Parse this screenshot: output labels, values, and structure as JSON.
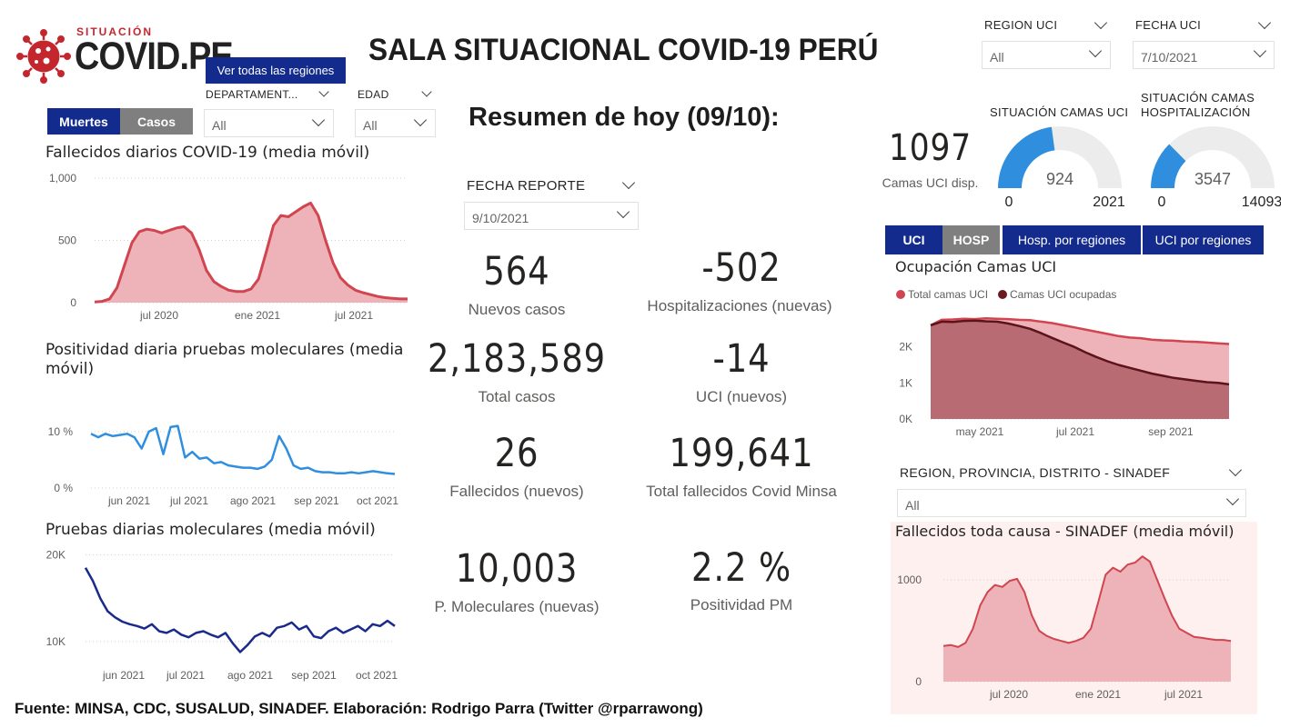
{
  "logo": {
    "small": "SITUACIÓN",
    "big": "COVID.PE"
  },
  "title": "SALA SITUACIONAL COVID-19 PERÚ",
  "regions_button": "Ver todas las regiones",
  "filters": {
    "region_uci": {
      "label": "REGION UCI",
      "value": "All"
    },
    "fecha_uci": {
      "label": "FECHA UCI",
      "value": "7/10/2021"
    },
    "departamento": {
      "label": "DEPARTAMENT...",
      "value": "All"
    },
    "edad": {
      "label": "EDAD",
      "value": "All"
    },
    "fecha_reporte": {
      "label": "FECHA REPORTE",
      "value": "9/10/2021"
    },
    "sinadef": {
      "label": "REGION, PROVINCIA, DISTRITO - SINADEF",
      "value": "All"
    }
  },
  "toggle_left": {
    "muertes": "Muertes",
    "casos": "Casos"
  },
  "resumen_title": "Resumen de hoy (09/10):",
  "kpis": {
    "nuevos_casos": {
      "value": "564",
      "label": "Nuevos casos"
    },
    "hosp_nuevas": {
      "value": "-502",
      "label": "Hospitalizaciones (nuevas)"
    },
    "total_casos": {
      "value": "2,183,589",
      "label": "Total casos"
    },
    "uci_nuevos": {
      "value": "-14",
      "label": "UCI (nuevos)"
    },
    "fallecidos": {
      "value": "26",
      "label": "Fallecidos  (nuevos)"
    },
    "total_fallecidos": {
      "value": "199,641",
      "label": "Total fallecidos Covid Minsa"
    },
    "p_moleculares": {
      "value": "10,003",
      "label": "P. Moleculares (nuevas)"
    },
    "positividad": {
      "value": "2.2 %",
      "label": "Positividad PM"
    }
  },
  "camas": {
    "uci_disp_value": "1097",
    "uci_disp_label": "Camas UCI disp.",
    "gauge_uci": {
      "title": "SITUACIÓN CAMAS UCI",
      "value": 924,
      "min": 0,
      "max": 2021,
      "value_label": "924",
      "min_label": "0",
      "max_label": "2021"
    },
    "gauge_hosp": {
      "title1": "SITUACIÓN CAMAS",
      "title2": "HOSPITALIZACIÓN",
      "value": 3547,
      "min": 0,
      "max": 14093,
      "value_label": "3547",
      "min_label": "0",
      "max_label": "14093"
    }
  },
  "tabs": {
    "uci": "UCI",
    "hosp": "HOSP",
    "hosp_regiones": "Hosp. por regiones",
    "uci_regiones": "UCI por regiones"
  },
  "colors": {
    "navy": "#142b8e",
    "red": "#d0454f",
    "red_fill": "#eeb3b8",
    "blue": "#2f8fde",
    "darknavy": "#1a2a8a",
    "maroon": "#6b1a1f",
    "gray_toggle": "#7f7f7f"
  },
  "source": "Fuente: MINSA, CDC, SUSALUD, SINADEF. Elaboración: Rodrigo Parra (Twitter @rparrawong)",
  "chart_data": [
    {
      "id": "fallecidos_diarios",
      "type": "area",
      "title": "Fallecidos diarios COVID-19 (media móvil)",
      "x_ticks": [
        "jul 2020",
        "ene 2021",
        "jul 2021"
      ],
      "y_ticks": [
        "0",
        "500",
        "1,000"
      ],
      "ylim": [
        0,
        1000
      ],
      "series": [
        {
          "values": [
            5,
            10,
            30,
            120,
            300,
            480,
            570,
            590,
            580,
            560,
            580,
            600,
            610,
            560,
            430,
            260,
            170,
            130,
            100,
            90,
            90,
            110,
            190,
            400,
            620,
            700,
            690,
            730,
            770,
            800,
            700,
            500,
            320,
            200,
            140,
            100,
            80,
            65,
            50,
            40,
            35,
            30,
            30
          ]
        }
      ]
    },
    {
      "id": "positividad_moleculares",
      "type": "line",
      "title": "Positividad diaria pruebas moleculares (media móvil)",
      "x_ticks": [
        "jun 2021",
        "jul 2021",
        "ago 2021",
        "sep 2021",
        "oct 2021"
      ],
      "y_ticks": [
        "0 %",
        "10 %"
      ],
      "ylim": [
        0,
        14
      ],
      "series": [
        {
          "values": [
            9.6,
            9.0,
            9.6,
            9.2,
            9.4,
            9.6,
            9.0,
            7.0,
            10.0,
            10.6,
            6.0,
            10.8,
            11.0,
            5.4,
            6.4,
            5.2,
            5.4,
            4.4,
            4.6,
            4.0,
            3.8,
            3.6,
            3.6,
            3.4,
            3.8,
            5.0,
            9.2,
            7.0,
            4.0,
            3.4,
            3.6,
            3.0,
            2.8,
            2.8,
            2.6,
            2.6,
            2.8,
            2.6,
            2.8,
            3.0,
            2.8,
            2.6,
            2.5
          ]
        }
      ]
    },
    {
      "id": "pruebas_moleculares",
      "type": "line",
      "title": "Pruebas diarias moleculares (media móvil)",
      "x_ticks": [
        "jun 2021",
        "jul 2021",
        "ago 2021",
        "sep 2021",
        "oct 2021"
      ],
      "y_ticks": [
        "10K",
        "20K"
      ],
      "ylim": [
        8000,
        21000
      ],
      "series": [
        {
          "values": [
            18500,
            17000,
            15000,
            13500,
            12800,
            12300,
            12000,
            11800,
            11500,
            12000,
            11200,
            11000,
            11400,
            10800,
            10500,
            11000,
            11200,
            10800,
            10500,
            11000,
            9800,
            8800,
            9600,
            10600,
            11000,
            10600,
            11600,
            11800,
            12200,
            11400,
            11800,
            10600,
            10400,
            11200,
            11600,
            11000,
            11400,
            11800,
            11200,
            12000,
            11800,
            12400,
            11800
          ]
        }
      ]
    },
    {
      "id": "ocupacion_camas_uci",
      "type": "area",
      "title": "Ocupación Camas UCI",
      "x_ticks": [
        "may 2021",
        "jul 2021",
        "sep 2021"
      ],
      "y_ticks": [
        "0K",
        "1K",
        "2K"
      ],
      "ylim": [
        0,
        3000
      ],
      "series": [
        {
          "name": "Total camas UCI",
          "values": [
            2600,
            2750,
            2760,
            2780,
            2770,
            2790,
            2780,
            2770,
            2750,
            2740,
            2700,
            2660,
            2600,
            2540,
            2480,
            2420,
            2360,
            2300,
            2260,
            2240,
            2200,
            2180,
            2170,
            2150,
            2140,
            2120,
            2100,
            2080
          ]
        },
        {
          "name": "Camas UCI ocupadas",
          "values": [
            2600,
            2700,
            2690,
            2720,
            2730,
            2710,
            2700,
            2650,
            2580,
            2500,
            2380,
            2250,
            2120,
            2000,
            1850,
            1720,
            1600,
            1500,
            1420,
            1340,
            1260,
            1200,
            1140,
            1100,
            1060,
            1020,
            1000,
            960
          ]
        }
      ]
    },
    {
      "id": "fallecidos_sinadef",
      "type": "area",
      "title": "Fallecidos toda causa - SINADEF (media móvil)",
      "x_ticks": [
        "jul 2020",
        "ene 2021",
        "jul 2021"
      ],
      "y_ticks": [
        "0",
        "1000"
      ],
      "ylim": [
        0,
        1250
      ],
      "series": [
        {
          "values": [
            350,
            360,
            340,
            380,
            520,
            750,
            880,
            950,
            930,
            990,
            1010,
            880,
            650,
            500,
            450,
            420,
            400,
            380,
            400,
            430,
            520,
            780,
            1050,
            1120,
            1080,
            1150,
            1170,
            1230,
            1180,
            1000,
            820,
            650,
            520,
            480,
            440,
            430,
            420,
            410,
            410,
            400
          ]
        }
      ]
    }
  ]
}
